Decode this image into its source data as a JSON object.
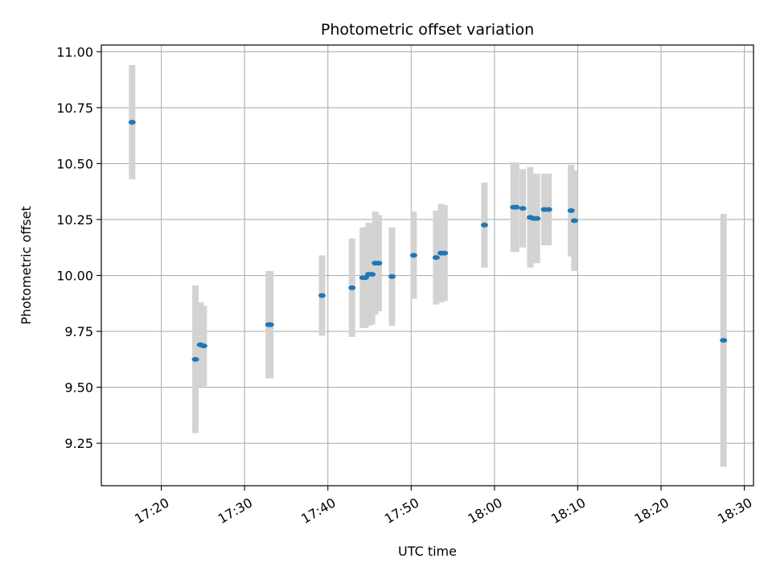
{
  "chart_data": {
    "type": "scatter",
    "title": "Photometric offset variation",
    "xlabel": "UTC time",
    "ylabel": "Photometric offset",
    "x_ticks": [
      "17:20",
      "17:30",
      "17:40",
      "17:50",
      "18:00",
      "18:10",
      "18:20",
      "18:30"
    ],
    "x_range": [
      "17:12:48",
      "18:31:06"
    ],
    "y_ticks": [
      "9.25",
      "9.50",
      "9.75",
      "10.00",
      "10.25",
      "10.50",
      "10.75",
      "11.00"
    ],
    "ylim": [
      9.06,
      11.03
    ],
    "grid": true,
    "colors": {
      "point": "#1f77b4",
      "errorbar": "#d3d3d3",
      "grid": "#b0b0b0"
    },
    "points": [
      {
        "t": "17:16:30",
        "y": 10.685,
        "err": 0.255
      },
      {
        "t": "17:24:06",
        "y": 9.625,
        "err": 0.33
      },
      {
        "t": "17:24:42",
        "y": 9.69,
        "err": 0.19
      },
      {
        "t": "17:25:06",
        "y": 9.685,
        "err": 0.18
      },
      {
        "t": "17:32:54",
        "y": 9.78,
        "err": 0.24
      },
      {
        "t": "17:33:06",
        "y": 9.78,
        "err": 0.24
      },
      {
        "t": "17:39:18",
        "y": 9.91,
        "err": 0.18
      },
      {
        "t": "17:42:54",
        "y": 9.945,
        "err": 0.22
      },
      {
        "t": "17:44:12",
        "y": 9.99,
        "err": 0.225
      },
      {
        "t": "17:44:30",
        "y": 9.99,
        "err": 0.225
      },
      {
        "t": "17:44:54",
        "y": 10.005,
        "err": 0.23
      },
      {
        "t": "17:45:18",
        "y": 10.005,
        "err": 0.225
      },
      {
        "t": "17:45:42",
        "y": 10.055,
        "err": 0.23
      },
      {
        "t": "17:46:06",
        "y": 10.055,
        "err": 0.215
      },
      {
        "t": "17:47:42",
        "y": 9.995,
        "err": 0.22
      },
      {
        "t": "17:50:18",
        "y": 10.09,
        "err": 0.195
      },
      {
        "t": "17:53:00",
        "y": 10.08,
        "err": 0.21
      },
      {
        "t": "17:53:36",
        "y": 10.1,
        "err": 0.22
      },
      {
        "t": "17:54:00",
        "y": 10.1,
        "err": 0.215
      },
      {
        "t": "17:58:48",
        "y": 10.225,
        "err": 0.19
      },
      {
        "t": "18:02:18",
        "y": 10.305,
        "err": 0.2
      },
      {
        "t": "18:02:36",
        "y": 10.305,
        "err": 0.2
      },
      {
        "t": "18:03:24",
        "y": 10.3,
        "err": 0.175
      },
      {
        "t": "18:04:18",
        "y": 10.26,
        "err": 0.225
      },
      {
        "t": "18:04:42",
        "y": 10.255,
        "err": 0.2
      },
      {
        "t": "18:05:06",
        "y": 10.255,
        "err": 0.2
      },
      {
        "t": "18:06:00",
        "y": 10.295,
        "err": 0.16
      },
      {
        "t": "18:06:30",
        "y": 10.295,
        "err": 0.16
      },
      {
        "t": "18:09:12",
        "y": 10.29,
        "err": 0.205
      },
      {
        "t": "18:09:36",
        "y": 10.245,
        "err": 0.225
      },
      {
        "t": "18:27:30",
        "y": 9.71,
        "err": 0.565
      }
    ]
  }
}
